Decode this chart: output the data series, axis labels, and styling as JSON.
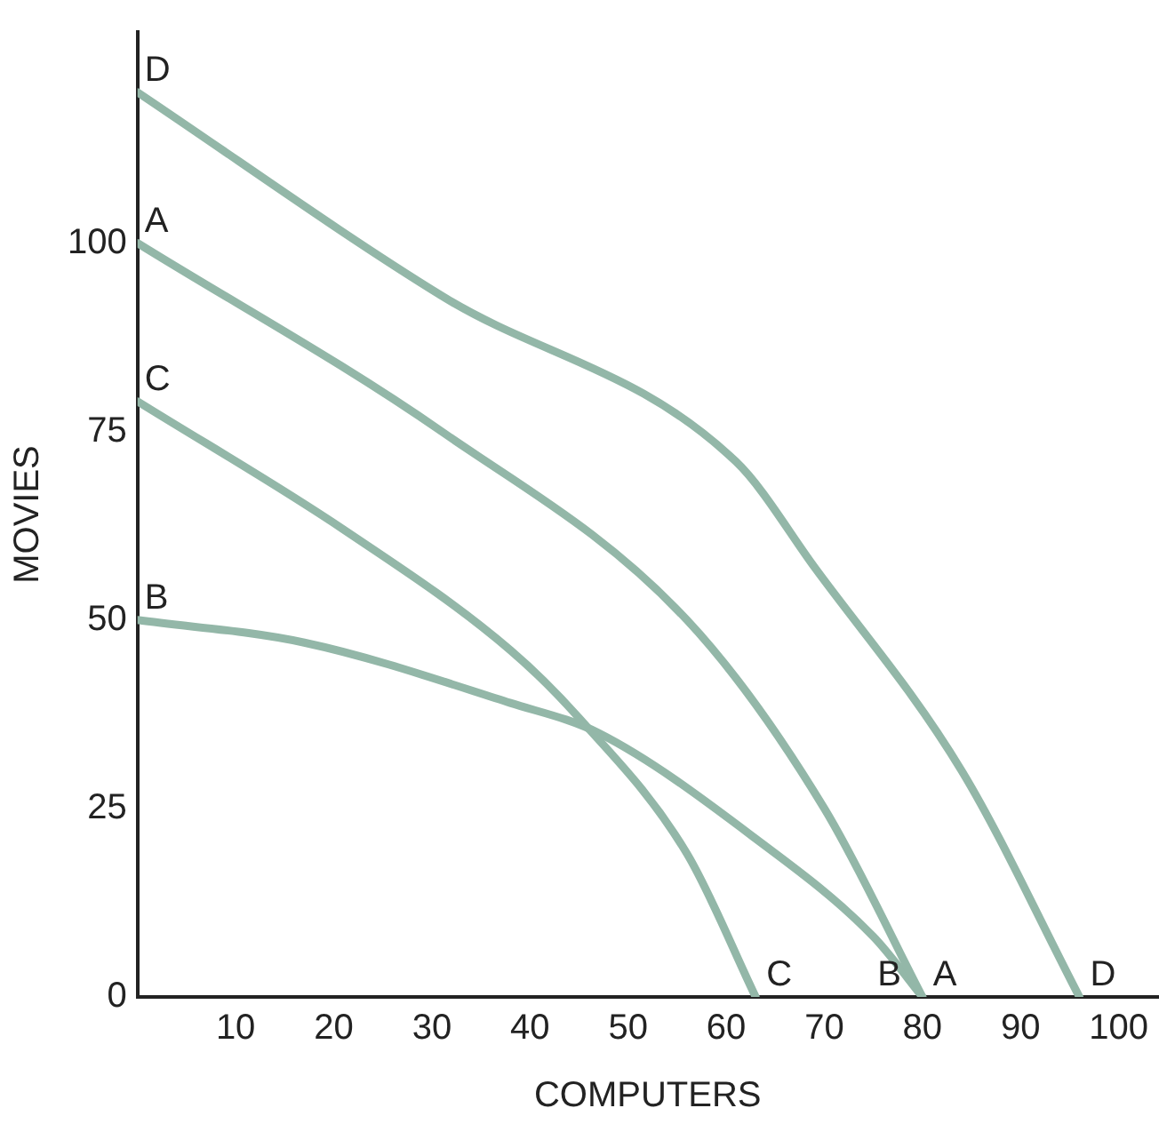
{
  "chart_data": {
    "type": "line",
    "xlabel": "COMPUTERS",
    "ylabel": "MOVIES",
    "xlim": [
      0,
      104
    ],
    "ylim": [
      0,
      128
    ],
    "xticks": [
      10,
      20,
      30,
      40,
      50,
      60,
      70,
      80,
      90,
      100
    ],
    "yticks": [
      0,
      25,
      50,
      75,
      100
    ],
    "grid": false,
    "legend": false,
    "marker": "none",
    "line_style": "solid",
    "series": [
      {
        "name": "D",
        "color": "#93b7a8",
        "x": [
          0,
          31,
          61,
          69,
          84,
          96
        ],
        "values": [
          120,
          93,
          71,
          57,
          30,
          0
        ]
      },
      {
        "name": "A",
        "color": "#93b7a8",
        "x": [
          0,
          31,
          56,
          70,
          80
        ],
        "values": [
          100,
          75,
          50,
          25,
          0
        ]
      },
      {
        "name": "C",
        "color": "#93b7a8",
        "x": [
          0,
          21,
          38,
          45,
          56,
          63
        ],
        "values": [
          79,
          62,
          46,
          37,
          19,
          0
        ]
      },
      {
        "name": "B",
        "color": "#93b7a8",
        "x": [
          0,
          17,
          38,
          47,
          63,
          75,
          80
        ],
        "values": [
          50,
          47,
          39,
          35,
          21,
          8,
          0
        ]
      }
    ]
  }
}
